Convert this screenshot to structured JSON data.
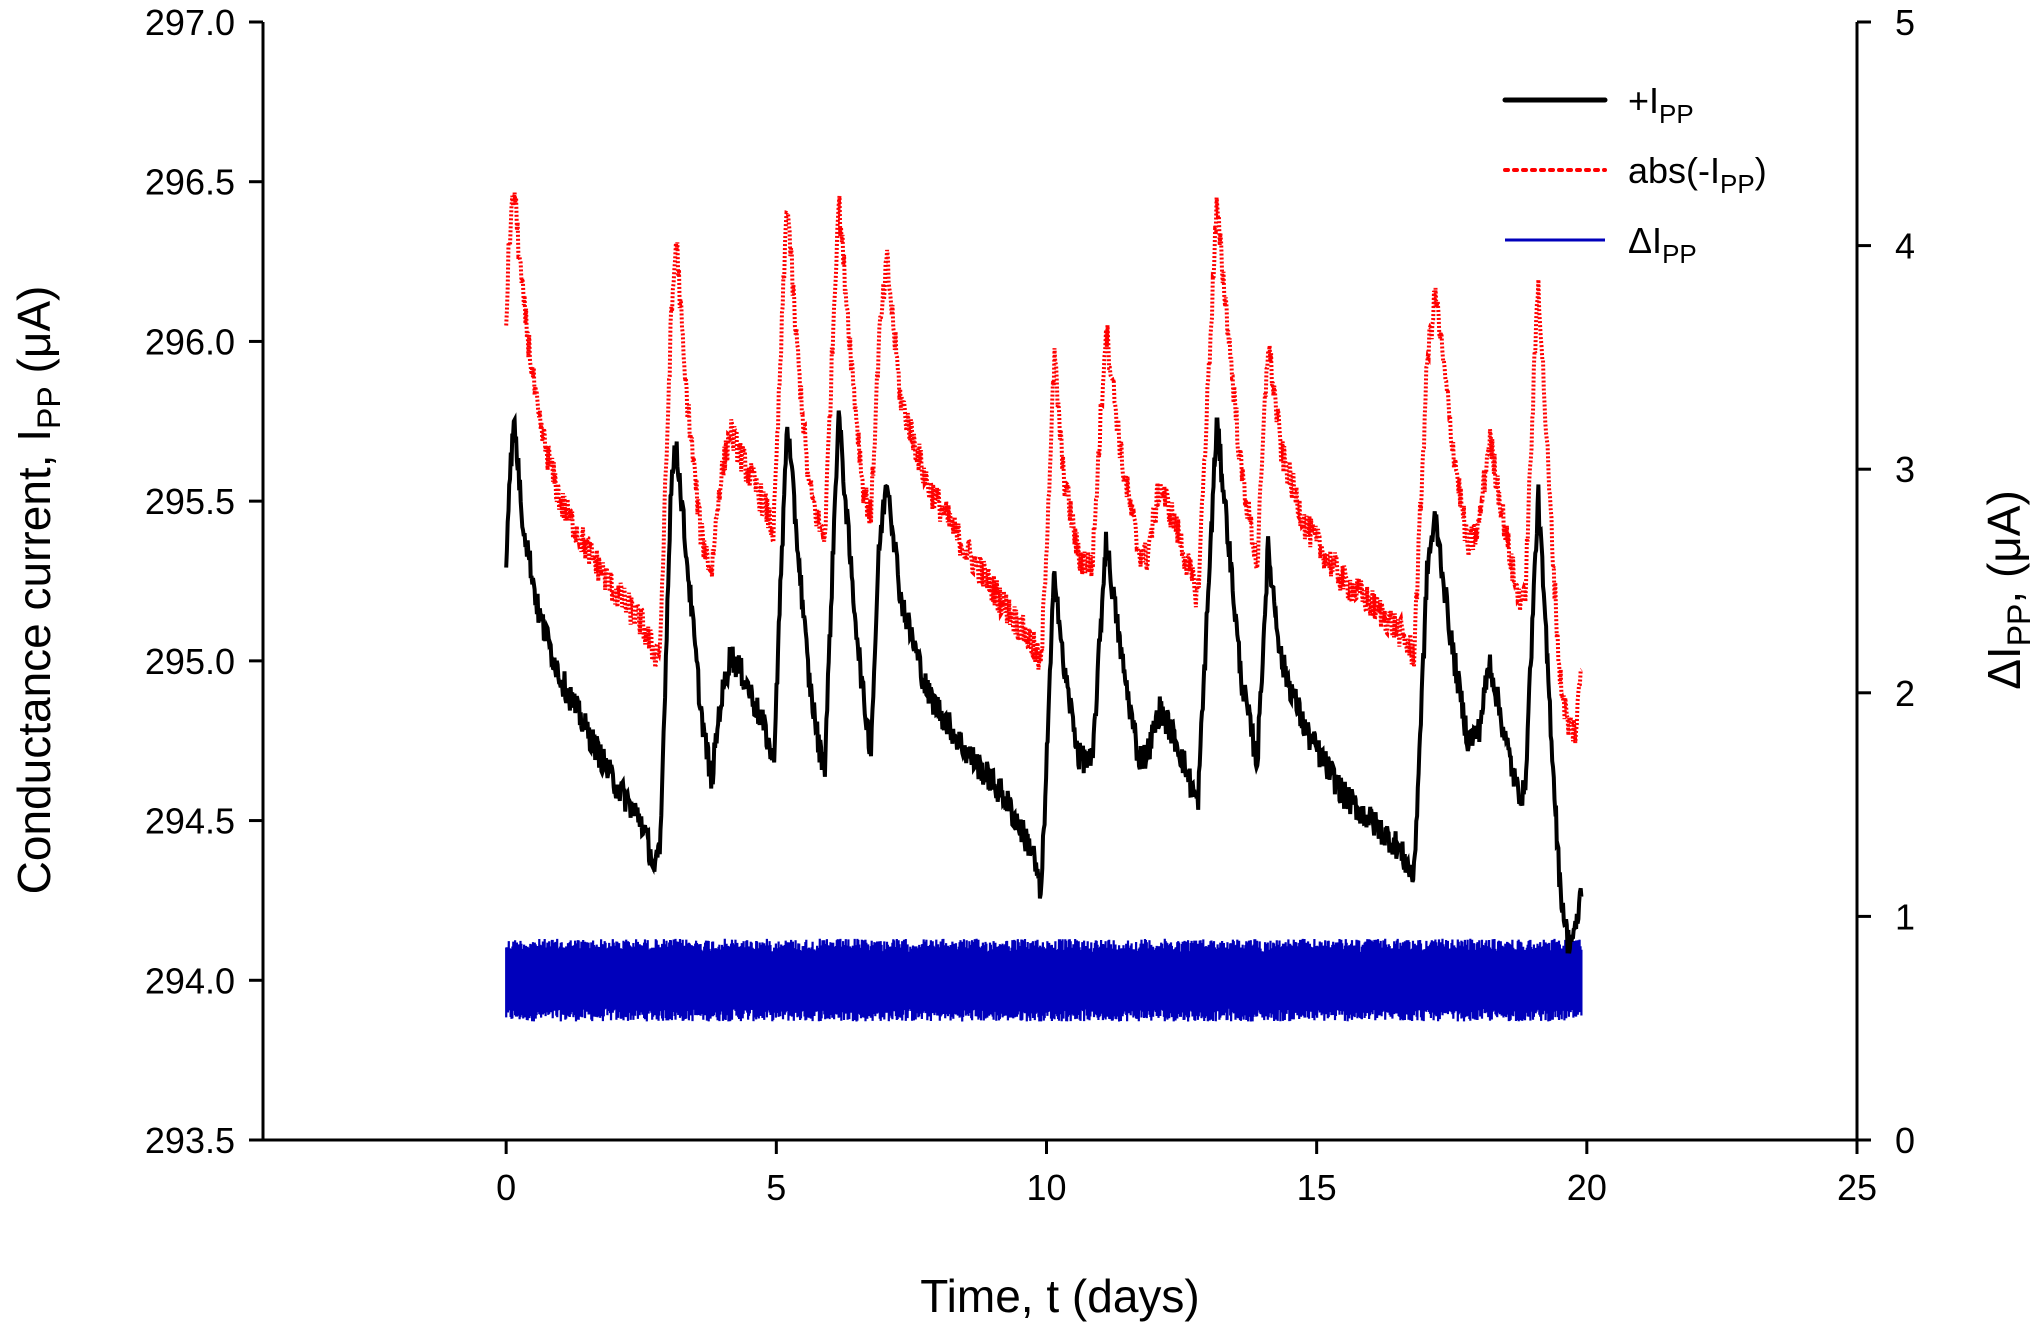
{
  "chart_data": {
    "type": "line",
    "title": "",
    "xlabel": "Time, t (days)",
    "ylabel_left": {
      "prefix": "Conductance current,  I",
      "sub": "PP",
      "suffix": " (μA)"
    },
    "ylabel_right": {
      "prefix": "ΔI",
      "sub": "PP",
      "suffix": ",  (μA)"
    },
    "xlim": [
      -4.5,
      25
    ],
    "ylim_left": [
      293.5,
      297.0
    ],
    "ylim_right": [
      0,
      5
    ],
    "x_ticks": [
      "0",
      "5",
      "10",
      "15",
      "20",
      "25"
    ],
    "y_ticks_left": [
      "293.5",
      "294.0",
      "294.5",
      "295.0",
      "295.5",
      "296.0",
      "296.5",
      "297.0"
    ],
    "y_ticks_right": [
      "0",
      "1",
      "2",
      "3",
      "4",
      "5"
    ],
    "legend_position": "top-right",
    "series": [
      {
        "name": "+I",
        "name_sub": "PP",
        "axis": "left",
        "color": "#000000",
        "style": "solid",
        "points": [
          [
            0,
            295.3
          ],
          [
            0.05,
            295.55
          ],
          [
            0.15,
            295.75
          ],
          [
            0.3,
            295.45
          ],
          [
            0.6,
            295.15
          ],
          [
            1.0,
            294.95
          ],
          [
            1.5,
            294.78
          ],
          [
            2.0,
            294.62
          ],
          [
            2.5,
            294.5
          ],
          [
            2.75,
            294.35
          ],
          [
            2.85,
            294.4
          ],
          [
            3.05,
            295.55
          ],
          [
            3.15,
            295.68
          ],
          [
            3.3,
            295.4
          ],
          [
            3.6,
            294.85
          ],
          [
            3.8,
            294.62
          ],
          [
            3.95,
            294.85
          ],
          [
            4.15,
            295.02
          ],
          [
            4.4,
            294.95
          ],
          [
            4.8,
            294.78
          ],
          [
            4.95,
            294.68
          ],
          [
            5.2,
            295.75
          ],
          [
            5.35,
            295.45
          ],
          [
            5.6,
            294.95
          ],
          [
            5.8,
            294.72
          ],
          [
            5.9,
            294.68
          ],
          [
            6.15,
            295.78
          ],
          [
            6.4,
            295.25
          ],
          [
            6.6,
            294.9
          ],
          [
            6.75,
            294.72
          ],
          [
            6.9,
            295.35
          ],
          [
            7.05,
            295.58
          ],
          [
            7.3,
            295.2
          ],
          [
            7.8,
            294.9
          ],
          [
            8.5,
            294.72
          ],
          [
            9.2,
            294.58
          ],
          [
            9.75,
            294.4
          ],
          [
            9.9,
            294.26
          ],
          [
            10.15,
            295.3
          ],
          [
            10.3,
            295.0
          ],
          [
            10.6,
            294.7
          ],
          [
            10.85,
            294.68
          ],
          [
            11.1,
            295.38
          ],
          [
            11.4,
            295.0
          ],
          [
            11.7,
            294.7
          ],
          [
            11.85,
            294.7
          ],
          [
            12.1,
            294.85
          ],
          [
            12.4,
            294.75
          ],
          [
            12.7,
            294.6
          ],
          [
            12.8,
            294.55
          ],
          [
            13.15,
            295.75
          ],
          [
            13.3,
            295.5
          ],
          [
            13.6,
            294.95
          ],
          [
            13.9,
            294.68
          ],
          [
            14.1,
            295.35
          ],
          [
            14.35,
            295.0
          ],
          [
            14.8,
            294.78
          ],
          [
            15.5,
            294.58
          ],
          [
            16.0,
            294.5
          ],
          [
            16.5,
            294.42
          ],
          [
            16.8,
            294.32
          ],
          [
            17.05,
            295.3
          ],
          [
            17.2,
            295.45
          ],
          [
            17.5,
            295.05
          ],
          [
            17.8,
            294.75
          ],
          [
            18.0,
            294.78
          ],
          [
            18.2,
            295.0
          ],
          [
            18.5,
            294.75
          ],
          [
            18.7,
            294.6
          ],
          [
            18.85,
            294.58
          ],
          [
            19.1,
            295.52
          ],
          [
            19.3,
            294.9
          ],
          [
            19.5,
            294.3
          ],
          [
            19.65,
            294.12
          ],
          [
            19.8,
            294.15
          ],
          [
            19.9,
            294.3
          ]
        ]
      },
      {
        "name": "abs(-I",
        "name_sub": "PP",
        "name_suffix": ")",
        "axis": "left",
        "color": "#ff0000",
        "style": "dotted",
        "points": [
          [
            0,
            296.05
          ],
          [
            0.05,
            296.3
          ],
          [
            0.15,
            296.48
          ],
          [
            0.3,
            296.15
          ],
          [
            0.6,
            295.75
          ],
          [
            1.0,
            295.5
          ],
          [
            1.5,
            295.35
          ],
          [
            2.0,
            295.22
          ],
          [
            2.5,
            295.12
          ],
          [
            2.75,
            295.02
          ],
          [
            2.85,
            295.05
          ],
          [
            3.05,
            296.05
          ],
          [
            3.15,
            296.33
          ],
          [
            3.3,
            295.9
          ],
          [
            3.6,
            295.4
          ],
          [
            3.8,
            295.28
          ],
          [
            3.95,
            295.55
          ],
          [
            4.15,
            295.72
          ],
          [
            4.4,
            295.62
          ],
          [
            4.8,
            295.48
          ],
          [
            4.95,
            295.4
          ],
          [
            5.2,
            296.45
          ],
          [
            5.35,
            296.05
          ],
          [
            5.6,
            295.55
          ],
          [
            5.8,
            295.42
          ],
          [
            5.9,
            295.4
          ],
          [
            6.15,
            296.45
          ],
          [
            6.4,
            295.92
          ],
          [
            6.6,
            295.55
          ],
          [
            6.75,
            295.45
          ],
          [
            6.9,
            296.0
          ],
          [
            7.05,
            296.25
          ],
          [
            7.3,
            295.82
          ],
          [
            7.8,
            295.55
          ],
          [
            8.5,
            295.35
          ],
          [
            9.2,
            295.18
          ],
          [
            9.75,
            295.05
          ],
          [
            9.9,
            294.98
          ],
          [
            10.15,
            295.95
          ],
          [
            10.3,
            295.6
          ],
          [
            10.6,
            295.32
          ],
          [
            10.85,
            295.3
          ],
          [
            11.1,
            296.05
          ],
          [
            11.4,
            295.62
          ],
          [
            11.7,
            295.35
          ],
          [
            11.85,
            295.32
          ],
          [
            12.1,
            295.55
          ],
          [
            12.4,
            295.42
          ],
          [
            12.7,
            295.25
          ],
          [
            12.8,
            295.2
          ],
          [
            13.15,
            296.42
          ],
          [
            13.3,
            296.15
          ],
          [
            13.6,
            295.6
          ],
          [
            13.9,
            295.3
          ],
          [
            14.1,
            296.0
          ],
          [
            14.35,
            295.65
          ],
          [
            14.8,
            295.42
          ],
          [
            15.5,
            295.25
          ],
          [
            16.0,
            295.18
          ],
          [
            16.5,
            295.1
          ],
          [
            16.8,
            295.02
          ],
          [
            17.05,
            295.95
          ],
          [
            17.2,
            296.15
          ],
          [
            17.5,
            295.7
          ],
          [
            17.8,
            295.35
          ],
          [
            18.0,
            295.42
          ],
          [
            18.2,
            295.7
          ],
          [
            18.5,
            295.4
          ],
          [
            18.7,
            295.22
          ],
          [
            18.85,
            295.18
          ],
          [
            19.1,
            296.2
          ],
          [
            19.3,
            295.55
          ],
          [
            19.5,
            294.95
          ],
          [
            19.65,
            294.8
          ],
          [
            19.8,
            294.78
          ],
          [
            19.9,
            295.0
          ]
        ]
      },
      {
        "name": "ΔI",
        "name_sub": "PP",
        "axis": "right",
        "color": "#0000bb",
        "style": "solid",
        "mean": 0.71,
        "band_low": 0.55,
        "band_high": 0.88,
        "x_start": 0,
        "x_end": 19.9
      }
    ]
  }
}
